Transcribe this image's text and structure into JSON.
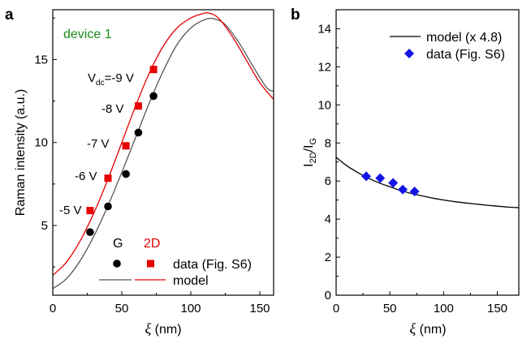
{
  "panels": {
    "a": {
      "label": "a",
      "annotation": "device 1"
    },
    "b": {
      "label": "b"
    }
  },
  "chart_data": [
    {
      "id": "a",
      "type": "line",
      "xlabel_symbol": "ξ",
      "xlabel_unit": "(nm)",
      "ylabel": "Raman intensity (a.u.)",
      "xlim": [
        0,
        160
      ],
      "ylim": [
        0.8,
        18
      ],
      "xticks": [
        0,
        50,
        100,
        150
      ],
      "yticks": [
        5,
        10,
        15
      ],
      "colors": {
        "G": "#000000",
        "2D": "#e60000",
        "model_G": "#555555",
        "model_2D": "#e60000",
        "annotation": "#1a8a1a"
      },
      "series": [
        {
          "name": "G",
          "kind": "points",
          "marker": "circle",
          "x": [
            27,
            40,
            53,
            62,
            73
          ],
          "y": [
            4.6,
            6.15,
            8.1,
            10.6,
            12.8
          ]
        },
        {
          "name": "2D",
          "kind": "points",
          "marker": "square",
          "x": [
            27,
            40,
            53,
            62,
            73
          ],
          "y": [
            5.9,
            7.85,
            9.8,
            12.2,
            14.4
          ]
        },
        {
          "name": "model_G",
          "kind": "line",
          "x": [
            0,
            10,
            20,
            30,
            40,
            50,
            60,
            70,
            80,
            90,
            100,
            110,
            117,
            125,
            135,
            145,
            155,
            160
          ],
          "y": [
            1.2,
            1.8,
            2.9,
            4.4,
            6.2,
            8.2,
            10.3,
            12.4,
            14.3,
            15.9,
            16.9,
            17.4,
            17.45,
            17.1,
            16.0,
            14.6,
            13.3,
            13.1
          ]
        },
        {
          "name": "model_2D",
          "kind": "line",
          "x": [
            0,
            10,
            20,
            30,
            40,
            50,
            60,
            70,
            80,
            90,
            100,
            108,
            113,
            120,
            130,
            140,
            150,
            160
          ],
          "y": [
            2.0,
            2.8,
            4.1,
            5.8,
            7.8,
            10.0,
            12.2,
            14.2,
            15.8,
            16.9,
            17.5,
            17.75,
            17.8,
            17.5,
            16.4,
            15.0,
            13.6,
            12.6
          ]
        }
      ],
      "point_labels": [
        {
          "text": "-5 V",
          "x": 27
        },
        {
          "text": "-6 V",
          "x": 40
        },
        {
          "text": "-7 V",
          "x": 53
        },
        {
          "text": "-8 V",
          "x": 62
        }
      ],
      "top_label": {
        "main": "V",
        "sub": "dc",
        "rest": "=-9 V"
      },
      "legend": {
        "header_G": "G",
        "header_2D": "2D",
        "data_label": "data (Fig. S6)",
        "model_label": "model"
      }
    },
    {
      "id": "b",
      "type": "line",
      "xlabel_symbol": "ξ",
      "xlabel_unit": "(nm)",
      "ylabel_main": "I",
      "ylabel_sub1": "2D",
      "ylabel_slash": "/I",
      "ylabel_sub2": "G",
      "xlim": [
        0,
        170
      ],
      "ylim": [
        0,
        15
      ],
      "xticks": [
        0,
        50,
        100,
        150
      ],
      "yticks": [
        0,
        2,
        4,
        6,
        8,
        10,
        12,
        14
      ],
      "colors": {
        "model": "#000000",
        "data": "#1515e6"
      },
      "series": [
        {
          "name": "model (x 4.8)",
          "kind": "line",
          "x": [
            0,
            10,
            20,
            30,
            40,
            50,
            60,
            70,
            80,
            90,
            100,
            110,
            120,
            130,
            140,
            150,
            160,
            170
          ],
          "y": [
            7.25,
            6.8,
            6.45,
            6.15,
            5.9,
            5.7,
            5.5,
            5.35,
            5.22,
            5.1,
            5.0,
            4.92,
            4.85,
            4.79,
            4.73,
            4.68,
            4.63,
            4.6
          ]
        },
        {
          "name": "data (Fig. S6)",
          "kind": "points",
          "marker": "diamond",
          "x": [
            28,
            41,
            53,
            62,
            73
          ],
          "y": [
            6.25,
            6.15,
            5.9,
            5.55,
            5.45
          ]
        }
      ],
      "legend": {
        "model_label": "model (x 4.8)",
        "data_label": "data (Fig. S6)"
      }
    }
  ]
}
